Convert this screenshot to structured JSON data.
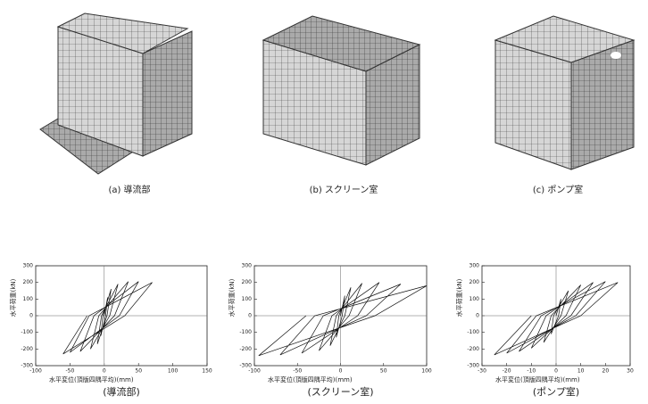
{
  "figures": [
    {
      "caption": "(a) 導流部"
    },
    {
      "caption": "(b) スクリーン室"
    },
    {
      "caption": "(c) ポンプ室"
    }
  ],
  "chart_data": [
    {
      "type": "line",
      "caption": "(導流部)",
      "xlabel": "水平変位(頂版四隅平均)(mm)",
      "ylabel": "水平荷重(kN)",
      "xlim": [
        -100,
        150
      ],
      "xticks": [
        -100,
        -50,
        0,
        50,
        100,
        150
      ],
      "ylim": [
        -300,
        300
      ],
      "yticks": [
        -300,
        -200,
        -100,
        0,
        100,
        200,
        300
      ],
      "color": "#111",
      "x": [
        0,
        5,
        2,
        -5,
        -2,
        10,
        4,
        -10,
        -4,
        20,
        8,
        -20,
        -8,
        35,
        15,
        -35,
        -15,
        50,
        22,
        -50,
        -22,
        70,
        30,
        -60,
        -25
      ],
      "values": [
        0,
        110,
        0,
        -120,
        0,
        160,
        0,
        -170,
        0,
        190,
        0,
        -200,
        0,
        205,
        0,
        -215,
        0,
        205,
        0,
        -220,
        0,
        200,
        0,
        -230,
        0
      ]
    },
    {
      "type": "line",
      "caption": "(スクリーン室)",
      "xlabel": "水平変位(頂版四隅平均)(mm)",
      "ylabel": "水平荷重(kN)",
      "xlim": [
        -100,
        100
      ],
      "xticks": [
        -100,
        -50,
        0,
        50,
        100
      ],
      "ylim": [
        -300,
        300
      ],
      "yticks": [
        -300,
        -200,
        -100,
        0,
        100,
        200,
        300
      ],
      "color": "#111",
      "x": [
        0,
        5,
        2,
        -5,
        -2,
        12,
        5,
        -12,
        -5,
        25,
        10,
        -25,
        -10,
        45,
        20,
        -45,
        -20,
        70,
        30,
        -70,
        -30,
        100,
        40,
        -95,
        -40
      ],
      "values": [
        0,
        120,
        0,
        -130,
        0,
        170,
        0,
        -180,
        0,
        195,
        0,
        -210,
        0,
        200,
        0,
        -225,
        0,
        190,
        0,
        -235,
        0,
        180,
        0,
        -240,
        0
      ]
    },
    {
      "type": "line",
      "caption": "(ポンプ室)",
      "xlabel": "水平変位(頂版四隅平均)(mm)",
      "ylabel": "水平荷重(kN)",
      "xlim": [
        -30,
        30
      ],
      "xticks": [
        -30,
        -20,
        -10,
        0,
        10,
        20,
        30
      ],
      "ylim": [
        -300,
        300
      ],
      "yticks": [
        -300,
        -200,
        -100,
        0,
        100,
        200,
        300
      ],
      "color": "#111",
      "x": [
        0,
        2,
        1,
        -2,
        -1,
        5,
        2,
        -5,
        -2,
        10,
        4,
        -10,
        -4,
        15,
        6,
        -15,
        -6,
        20,
        8,
        -20,
        -8,
        25,
        10,
        -25,
        -10
      ],
      "values": [
        0,
        100,
        0,
        -110,
        0,
        150,
        0,
        -160,
        0,
        185,
        0,
        -195,
        0,
        200,
        0,
        -215,
        0,
        205,
        0,
        -225,
        0,
        200,
        0,
        -235,
        0
      ]
    }
  ]
}
